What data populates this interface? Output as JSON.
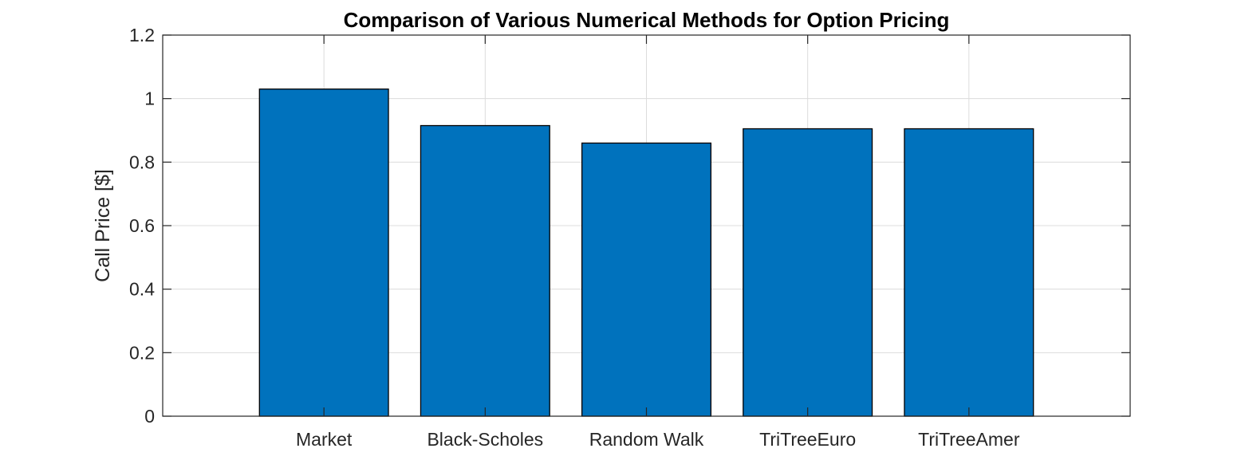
{
  "colors": {
    "bar_fill": "#0072BD",
    "bar_edge": "#000000",
    "grid": "#dcdcdc",
    "axis": "#262626"
  },
  "chart_data": {
    "type": "bar",
    "title": "Comparison of Various Numerical Methods for Option Pricing",
    "xlabel": "",
    "ylabel": "Call Price [$]",
    "categories": [
      "Market",
      "Black-Scholes",
      "Random Walk",
      "TriTreeEuro",
      "TriTreeAmer"
    ],
    "values": [
      1.03,
      0.915,
      0.86,
      0.905,
      0.905
    ],
    "ylim": [
      0,
      1.2
    ],
    "yticks": [
      0,
      0.2,
      0.4,
      0.6,
      0.8,
      1,
      1.2
    ],
    "ytick_labels": [
      "0",
      "0.2",
      "0.4",
      "0.6",
      "0.8",
      "1",
      "1.2"
    ],
    "xlim": [
      0,
      6
    ],
    "grid": true,
    "legend": "none"
  }
}
